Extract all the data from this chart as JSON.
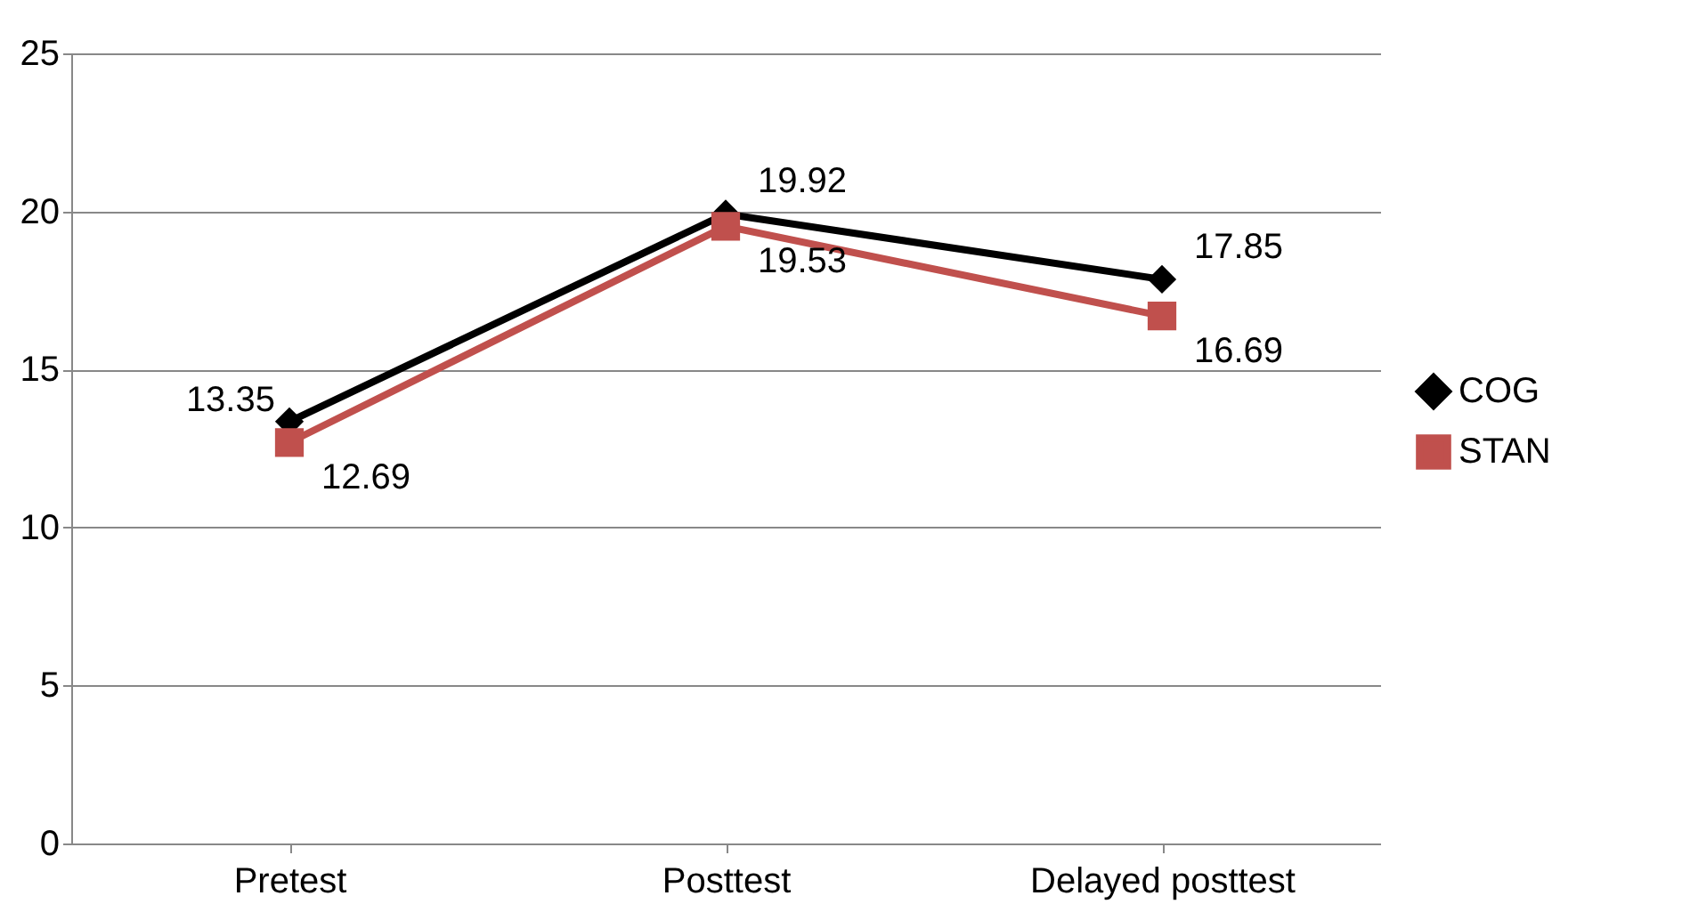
{
  "chart_data": {
    "type": "line",
    "categories": [
      "Pretest",
      "Posttest",
      "Delayed posttest"
    ],
    "series": [
      {
        "name": "COG",
        "color": "#000000",
        "marker": "diamond",
        "values": [
          13.35,
          19.92,
          17.85
        ]
      },
      {
        "name": "STAN",
        "color": "#c0504d",
        "marker": "square",
        "values": [
          12.69,
          19.53,
          16.69
        ]
      }
    ],
    "ylim": [
      0,
      25
    ],
    "yticks": [
      0,
      5,
      10,
      15,
      20,
      25
    ],
    "grid": "y",
    "legend": "right",
    "data_labels": true
  }
}
